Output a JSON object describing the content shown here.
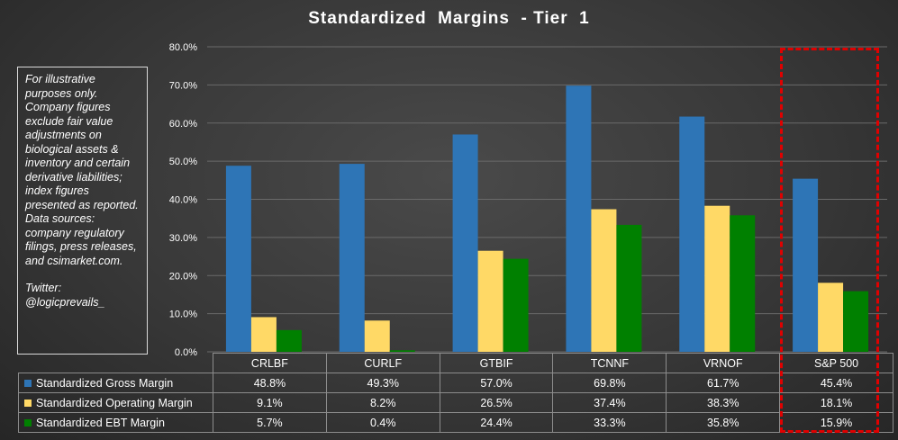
{
  "note": {
    "body": "For illustrative purposes only. Company figures exclude fair value adjustments on biological assets & inventory and certain derivative liabilities; index figures presented as reported. Data sources: company regulatory filings, press releases, and csimarket.com.",
    "handle": "Twitter:\n@logicprevails_"
  },
  "chart_data": {
    "type": "bar",
    "title": "Standardized  Margins  - Tier  1",
    "categories": [
      "CRLBF",
      "CURLF",
      "GTBIF",
      "TCNNF",
      "VRNOF",
      "S&P 500"
    ],
    "series": [
      {
        "name": "Standardized Gross Margin",
        "color": "#2e75b6",
        "values": [
          48.8,
          49.3,
          57.0,
          69.8,
          61.7,
          45.4
        ],
        "labels": [
          "48.8%",
          "49.3%",
          "57.0%",
          "69.8%",
          "61.7%",
          "45.4%"
        ]
      },
      {
        "name": "Standardized Operating Margin",
        "color": "#ffd966",
        "values": [
          9.1,
          8.2,
          26.5,
          37.4,
          38.3,
          18.1
        ],
        "labels": [
          "9.1%",
          "8.2%",
          "26.5%",
          "37.4%",
          "38.3%",
          "18.1%"
        ]
      },
      {
        "name": "Standardized EBT Margin",
        "color": "#008000",
        "values": [
          5.7,
          0.4,
          24.4,
          33.3,
          35.8,
          15.9
        ],
        "labels": [
          "5.7%",
          "0.4%",
          "24.4%",
          "33.3%",
          "35.8%",
          "15.9%"
        ]
      }
    ],
    "ylim": [
      0,
      80
    ],
    "yticks": [
      "0.0%",
      "10.0%",
      "20.0%",
      "30.0%",
      "40.0%",
      "50.0%",
      "60.0%",
      "70.0%",
      "80.0%"
    ],
    "grid": true,
    "legend": "data table below plot",
    "highlight": "S&P 500",
    "highlight_color": "#e00000"
  }
}
